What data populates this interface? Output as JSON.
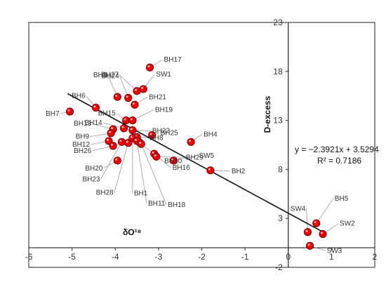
{
  "chart_data": {
    "type": "scatter",
    "xlabel": "δO¹⁸",
    "ylabel": "D-excess",
    "xlim": [
      -6,
      2
    ],
    "ylim": [
      -2,
      23
    ],
    "x_ticks": [
      "-6",
      "-5",
      "-4",
      "-3",
      "-2",
      "-1",
      "0",
      "1",
      "2"
    ],
    "y_ticks": [
      "-2",
      "3",
      "8",
      "13",
      "18",
      "23"
    ],
    "grid": false,
    "marker_color": "#e8000b",
    "points": [
      {
        "label": "BH17",
        "x": -3.2,
        "y": 18.4
      },
      {
        "label": "BH27",
        "x": -3.5,
        "y": 16.0
      },
      {
        "label": "SW1",
        "x": -3.35,
        "y": 16.2
      },
      {
        "label": "BH24",
        "x": -3.7,
        "y": 15.3
      },
      {
        "label": "BH3",
        "x": -3.95,
        "y": 15.4
      },
      {
        "label": "BH21",
        "x": -3.55,
        "y": 14.6
      },
      {
        "label": "BH6",
        "x": -4.45,
        "y": 14.3
      },
      {
        "label": "BH7",
        "x": -5.05,
        "y": 13.9
      },
      {
        "label": "BH15",
        "x": -3.75,
        "y": 13.0
      },
      {
        "label": "BH19",
        "x": -3.6,
        "y": 13.0
      },
      {
        "label": "BH14",
        "x": -3.8,
        "y": 12.2
      },
      {
        "label": "BH22",
        "x": -3.6,
        "y": 12.0
      },
      {
        "label": "BH13",
        "x": -4.05,
        "y": 12.1
      },
      {
        "label": "BH9",
        "x": -4.1,
        "y": 11.7
      },
      {
        "label": "BH25",
        "x": -3.15,
        "y": 11.5
      },
      {
        "label": "BH4",
        "x": -2.25,
        "y": 10.8
      },
      {
        "label": "BH8",
        "x": -3.5,
        "y": 11.3
      },
      {
        "label": "BH12",
        "x": -4.15,
        "y": 10.9
      },
      {
        "label": "BH26",
        "x": -4.05,
        "y": 10.4
      },
      {
        "label": "BH10",
        "x": -3.45,
        "y": 10.8
      },
      {
        "label": "BH16",
        "x": -3.1,
        "y": 9.6
      },
      {
        "label": "SW5",
        "x": -2.65,
        "y": 8.9
      },
      {
        "label": "BH29",
        "x": -3.05,
        "y": 9.3
      },
      {
        "label": "BH2",
        "x": -1.8,
        "y": 7.9
      },
      {
        "label": "BH20",
        "x": -3.95,
        "y": 8.9
      },
      {
        "label": "BH23",
        "x": -3.85,
        "y": 10.8
      },
      {
        "label": "BH28",
        "x": -3.7,
        "y": 10.7
      },
      {
        "label": "BH1",
        "x": -3.6,
        "y": 11.2
      },
      {
        "label": "BH11",
        "x": -3.5,
        "y": 10.9
      },
      {
        "label": "BH18",
        "x": -3.4,
        "y": 10.6
      },
      {
        "label": "SW4",
        "x": 0.45,
        "y": 1.6
      },
      {
        "label": "BH5",
        "x": 0.65,
        "y": 2.5
      },
      {
        "label": "SW2",
        "x": 0.8,
        "y": 1.4
      },
      {
        "label": "SW3",
        "x": 0.5,
        "y": 0.2
      }
    ],
    "trendline": {
      "slope": -2.3921,
      "intercept": 3.5294,
      "x_range": [
        -5.1,
        0.8
      ]
    },
    "annotations": [
      "y = −2.3921x + 3.5294",
      "R² = 0.7186"
    ]
  }
}
